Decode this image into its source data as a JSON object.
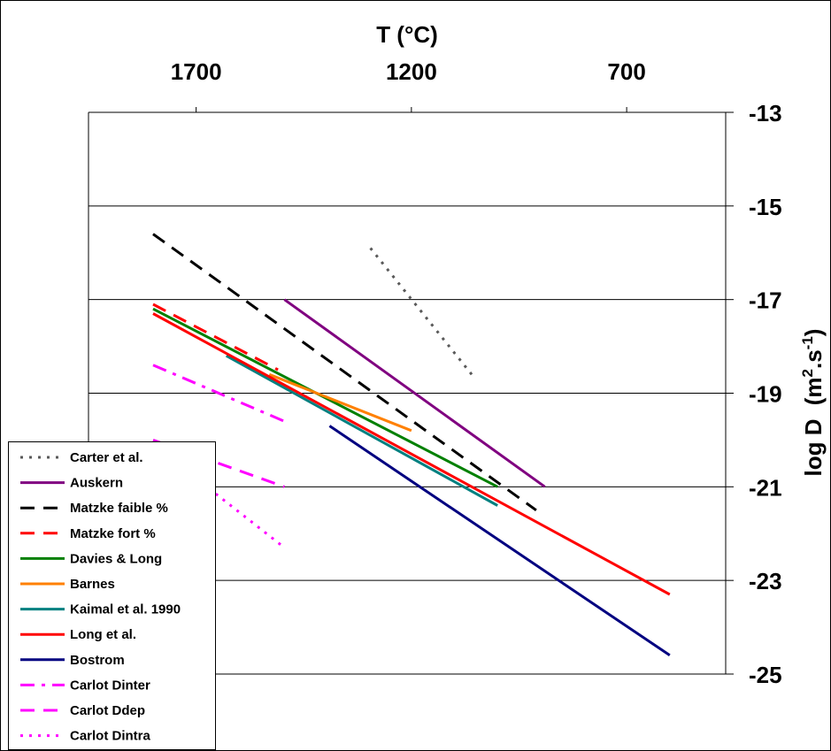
{
  "chart_data": {
    "type": "line",
    "x_axis": {
      "label": "T (°C)",
      "position": "top",
      "ticks": [
        1700,
        1200,
        700
      ],
      "range": [
        1950,
        470
      ]
    },
    "y_axis": {
      "label": "log D",
      "label_units": "(m²·s⁻¹)",
      "label_units_base": "(m",
      "label_units_sup1": "2",
      "label_units_mid": ".s",
      "label_units_sup2": "-1",
      "label_units_end": ")",
      "position": "right",
      "ticks": [
        -13,
        -15,
        -17,
        -19,
        -21,
        -23,
        -25
      ],
      "range": [
        -25,
        -13
      ]
    },
    "grid": "horizontal",
    "legend_position": "bottom-left",
    "series": [
      {
        "name": "Carter et al.",
        "color": "#595959",
        "dash": "dot",
        "x": [
          1295,
          1060
        ],
        "y": [
          -15.9,
          -18.6
        ]
      },
      {
        "name": "Auskern",
        "color": "#800080",
        "dash": "solid",
        "x": [
          1495,
          890
        ],
        "y": [
          -17.0,
          -21.0
        ]
      },
      {
        "name": "Matzke faible %",
        "color": "#000000",
        "dash": "longdash",
        "x": [
          1800,
          910
        ],
        "y": [
          -15.6,
          -21.5
        ]
      },
      {
        "name": "Matzke fort %",
        "color": "#ff0000",
        "dash": "longdash",
        "x": [
          1800,
          1510
        ],
        "y": [
          -17.1,
          -18.5
        ]
      },
      {
        "name": "Davies & Long",
        "color": "#008000",
        "dash": "solid",
        "x": [
          1800,
          1000
        ],
        "y": [
          -17.2,
          -21.0
        ]
      },
      {
        "name": "Barnes",
        "color": "#ff8000",
        "dash": "solid",
        "x": [
          1530,
          1200
        ],
        "y": [
          -18.6,
          -19.8
        ]
      },
      {
        "name": "Kaimal et al. 1990",
        "color": "#008080",
        "dash": "solid",
        "x": [
          1630,
          1000
        ],
        "y": [
          -18.2,
          -21.4
        ]
      },
      {
        "name": "Long et al.",
        "color": "#ff0000",
        "dash": "solid",
        "x": [
          1800,
          600
        ],
        "y": [
          -17.3,
          -23.3
        ]
      },
      {
        "name": "Bostrom",
        "color": "#000080",
        "dash": "solid",
        "x": [
          1390,
          600
        ],
        "y": [
          -19.7,
          -24.6
        ]
      },
      {
        "name": "Carlot Dinter",
        "color": "#ff00ff",
        "dash": "dashdot",
        "x": [
          1800,
          1495
        ],
        "y": [
          -18.4,
          -19.6
        ]
      },
      {
        "name": "Carlot Ddep",
        "color": "#ff00ff",
        "dash": "longdash",
        "x": [
          1800,
          1495
        ],
        "y": [
          -20.0,
          -21.0
        ]
      },
      {
        "name": "Carlot Dintra",
        "color": "#ff00ff",
        "dash": "dot",
        "x": [
          1800,
          1495
        ],
        "y": [
          -20.1,
          -22.3
        ]
      }
    ]
  }
}
